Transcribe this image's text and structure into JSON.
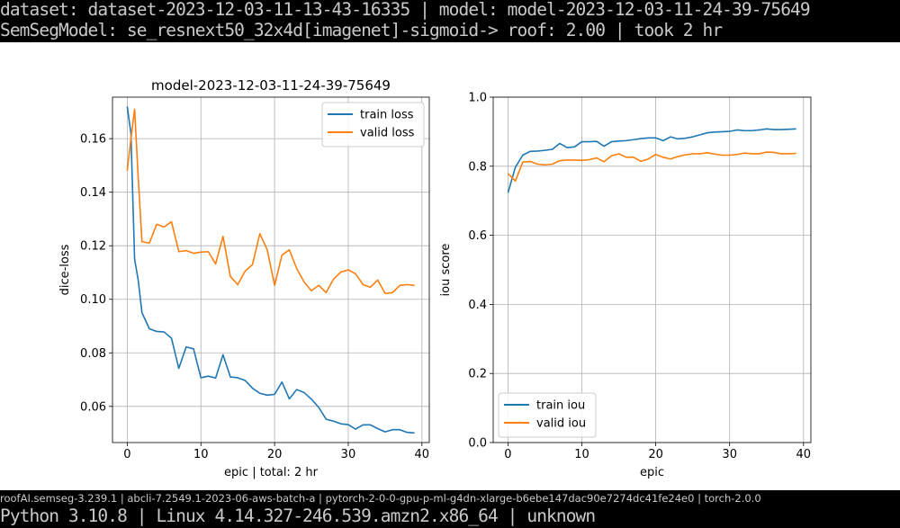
{
  "header": {
    "line1": "dataset: dataset-2023-12-03-11-13-43-16335 | model: model-2023-12-03-11-24-39-75649",
    "line2": "SemSegModel: se_resnext50_32x4d[imagenet]-sigmoid-> roof: 2.00 | took 2 hr"
  },
  "footer": {
    "line1": "roofAI.semseg-3.239.1 | abcli-7.2549.1-2023-06-aws-batch-a | pytorch-2-0-0-gpu-p-ml-g4dn-xlarge-b6ebe147dac90e7274dc41fe24e0 | torch-2.0.0",
    "line2": "Python 3.10.8 | Linux 4.14.327-246.539.amzn2.x86_64 | unknown"
  },
  "colors": {
    "train": "#1f77b4",
    "valid": "#ff7f0e",
    "grid": "#b0b0b0"
  },
  "chart_data": [
    {
      "type": "line",
      "title": "model-2023-12-03-11-24-39-75649",
      "xlabel": "epic | total: 2 hr",
      "ylabel": "dice-loss",
      "xlim": [
        -2,
        41
      ],
      "ylim": [
        0.0465,
        0.1755
      ],
      "xticks": [
        0,
        10,
        20,
        30,
        40
      ],
      "xtick_labels": [
        "0",
        "10",
        "20",
        "30",
        "40"
      ],
      "yticks": [
        0.06,
        0.08,
        0.1,
        0.12,
        0.14,
        0.16
      ],
      "ytick_labels": [
        "0.06",
        "0.08",
        "0.10",
        "0.12",
        "0.14",
        "0.16"
      ],
      "grid": true,
      "legend_position": "top-right",
      "x": [
        0,
        0.5,
        1,
        1.5,
        2,
        3,
        4,
        5,
        6,
        7,
        8,
        9,
        10,
        11,
        12,
        13,
        14,
        15,
        16,
        17,
        18,
        19,
        20,
        21,
        22,
        23,
        24,
        25,
        26,
        27,
        28,
        29,
        30,
        31,
        32,
        33,
        34,
        35,
        36,
        37,
        38,
        39
      ],
      "series": [
        {
          "name": "train loss",
          "values": [
            0.172,
            0.162,
            0.115,
            0.107,
            0.095,
            0.089,
            0.088,
            0.0878,
            0.0855,
            0.0742,
            0.0822,
            0.0815,
            0.0707,
            0.0713,
            0.0706,
            0.0793,
            0.071,
            0.0707,
            0.0697,
            0.0668,
            0.0649,
            0.0642,
            0.0645,
            0.0691,
            0.0628,
            0.0663,
            0.0652,
            0.0627,
            0.0596,
            0.0552,
            0.0545,
            0.0535,
            0.0532,
            0.0515,
            0.0531,
            0.0531,
            0.0517,
            0.0505,
            0.0513,
            0.0513,
            0.0503,
            0.0501
          ]
        },
        {
          "name": "valid loss",
          "values": [
            0.148,
            0.16,
            0.171,
            0.145,
            0.1215,
            0.121,
            0.128,
            0.127,
            0.129,
            0.1178,
            0.1182,
            0.1172,
            0.1176,
            0.1178,
            0.1132,
            0.1235,
            0.1085,
            0.1055,
            0.1105,
            0.113,
            0.1245,
            0.1185,
            0.1052,
            0.1165,
            0.1185,
            0.1115,
            0.1065,
            0.1032,
            0.1052,
            0.1025,
            0.1075,
            0.1102,
            0.111,
            0.1095,
            0.1055,
            0.1045,
            0.1072,
            0.1022,
            0.1025,
            0.1052,
            0.1055,
            0.1052
          ]
        }
      ]
    },
    {
      "type": "line",
      "title": "",
      "xlabel": "epic",
      "ylabel": "iou score",
      "xlim": [
        -2,
        41
      ],
      "ylim": [
        0.0,
        1.0
      ],
      "xticks": [
        0,
        10,
        20,
        30,
        40
      ],
      "xtick_labels": [
        "0",
        "10",
        "20",
        "30",
        "40"
      ],
      "yticks": [
        0.0,
        0.2,
        0.4,
        0.6,
        0.8,
        1.0
      ],
      "ytick_labels": [
        "0.0",
        "0.2",
        "0.4",
        "0.6",
        "0.8",
        "1.0"
      ],
      "grid": true,
      "legend_position": "bottom-left",
      "x": [
        0,
        1,
        2,
        3,
        4,
        5,
        6,
        7,
        8,
        9,
        10,
        11,
        12,
        13,
        14,
        15,
        16,
        17,
        18,
        19,
        20,
        21,
        22,
        23,
        24,
        25,
        26,
        27,
        28,
        29,
        30,
        31,
        32,
        33,
        34,
        35,
        36,
        37,
        38,
        39
      ],
      "series": [
        {
          "name": "train iou",
          "values": [
            0.723,
            0.797,
            0.832,
            0.843,
            0.844,
            0.846,
            0.849,
            0.866,
            0.854,
            0.856,
            0.871,
            0.871,
            0.872,
            0.858,
            0.871,
            0.873,
            0.874,
            0.877,
            0.88,
            0.882,
            0.882,
            0.874,
            0.885,
            0.879,
            0.881,
            0.885,
            0.891,
            0.897,
            0.899,
            0.9,
            0.901,
            0.905,
            0.903,
            0.903,
            0.905,
            0.908,
            0.906,
            0.906,
            0.907,
            0.908
          ]
        },
        {
          "name": "valid iou",
          "values": [
            0.779,
            0.757,
            0.812,
            0.814,
            0.806,
            0.804,
            0.806,
            0.816,
            0.818,
            0.818,
            0.817,
            0.819,
            0.824,
            0.813,
            0.83,
            0.836,
            0.826,
            0.826,
            0.814,
            0.821,
            0.834,
            0.826,
            0.821,
            0.828,
            0.833,
            0.836,
            0.836,
            0.839,
            0.835,
            0.832,
            0.832,
            0.834,
            0.838,
            0.836,
            0.836,
            0.841,
            0.84,
            0.836,
            0.836,
            0.837
          ]
        }
      ]
    }
  ]
}
